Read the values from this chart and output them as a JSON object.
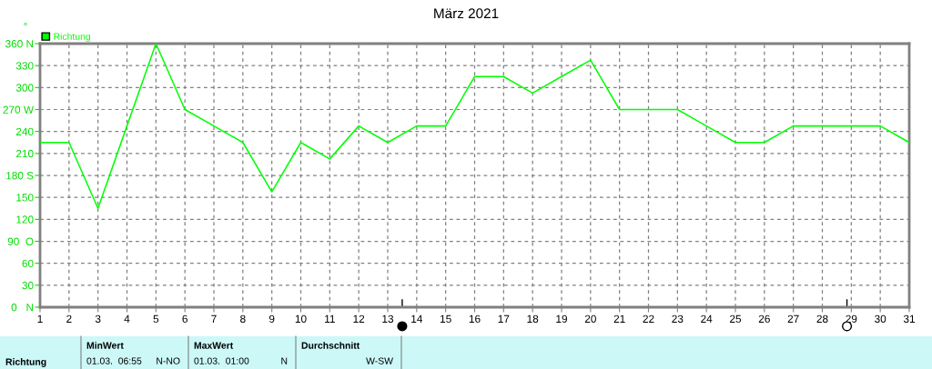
{
  "chart_data": {
    "type": "line",
    "title": "März 2021",
    "ylabel": "°",
    "x": [
      1,
      2,
      3,
      4,
      5,
      6,
      7,
      8,
      9,
      10,
      11,
      12,
      13,
      14,
      15,
      16,
      17,
      18,
      19,
      20,
      21,
      22,
      23,
      24,
      25,
      26,
      27,
      28,
      29,
      30,
      31
    ],
    "series": [
      {
        "name": "Richtung",
        "color": "#00ff00",
        "values": [
          225,
          225,
          135,
          247.5,
          360,
          270,
          247.5,
          225,
          157.5,
          225,
          202.5,
          247.5,
          225,
          247.5,
          247.5,
          315,
          315,
          292.5,
          315,
          337.5,
          270,
          270,
          270,
          247.5,
          225,
          225,
          247.5,
          247.5,
          247.5,
          247.5,
          225
        ]
      }
    ],
    "xlim": [
      1,
      31
    ],
    "xticks": [
      1,
      2,
      3,
      4,
      5,
      6,
      7,
      8,
      9,
      10,
      11,
      12,
      13,
      14,
      15,
      16,
      17,
      18,
      19,
      20,
      21,
      22,
      23,
      24,
      25,
      26,
      27,
      28,
      29,
      30,
      31
    ],
    "ylim": [
      0,
      360
    ],
    "yticks": [
      {
        "value": 0,
        "label": "0   N"
      },
      30,
      60,
      {
        "value": 90,
        "label": "90  O"
      },
      120,
      150,
      {
        "value": 180,
        "label": "180 S"
      },
      210,
      240,
      {
        "value": 270,
        "label": "270 W"
      },
      300,
      330,
      {
        "value": 360,
        "label": "360 N"
      }
    ],
    "grid": true,
    "legend": "top left",
    "marker": "none",
    "line_style": "solid",
    "annotations": [
      "Richtung",
      "MinWert",
      "01.03.  06:55",
      "N-NO",
      "MaxWert",
      "01.03.  01:00",
      "N",
      "Durchschnitt",
      "W-SW"
    ]
  }
}
